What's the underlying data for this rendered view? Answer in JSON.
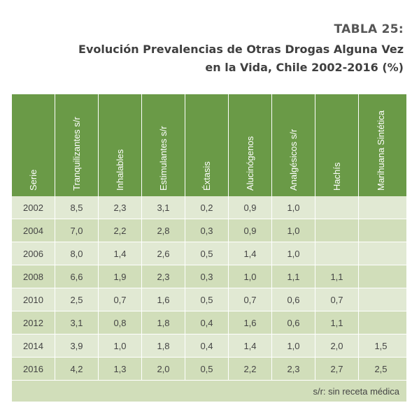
{
  "header": {
    "label": "TABLA 25:",
    "title_line1": "Evolución Prevalencias de Otras Drogas Alguna Vez",
    "title_line2": "en la Vida, Chile 2002-2016 (%)"
  },
  "table": {
    "columns": [
      "Serie",
      "Tranquilizantes s/r",
      "Inhalables",
      "Estimulantes s/r",
      "Éxtasis",
      "Alucinógenos",
      "Analgésicos s/r",
      "Hachís",
      "Marihuana Sintética"
    ],
    "rows": [
      [
        "2002",
        "8,5",
        "2,3",
        "3,1",
        "0,2",
        "0,9",
        "1,0",
        "",
        ""
      ],
      [
        "2004",
        "7,0",
        "2,2",
        "2,8",
        "0,3",
        "0,9",
        "1,0",
        "",
        ""
      ],
      [
        "2006",
        "8,0",
        "1,4",
        "2,6",
        "0,5",
        "1,4",
        "1,0",
        "",
        ""
      ],
      [
        "2008",
        "6,6",
        "1,9",
        "2,3",
        "0,3",
        "1,0",
        "1,1",
        "1,1",
        ""
      ],
      [
        "2010",
        "2,5",
        "0,7",
        "1,6",
        "0,5",
        "0,7",
        "0,6",
        "0,7",
        ""
      ],
      [
        "2012",
        "3,1",
        "0,8",
        "1,8",
        "0,4",
        "1,6",
        "0,6",
        "1,1",
        ""
      ],
      [
        "2014",
        "3,9",
        "1,0",
        "1,8",
        "0,4",
        "1,4",
        "1,0",
        "2,0",
        "1,5"
      ],
      [
        "2016",
        "4,2",
        "1,3",
        "2,0",
        "0,5",
        "2,2",
        "2,3",
        "2,7",
        "2,5"
      ]
    ],
    "footnote": "s/r: sin receta médica"
  },
  "colors": {
    "header_green": "#6a9a47",
    "row_light": "#e1e9d3",
    "row_dark": "#d1deba",
    "text": "#444444"
  }
}
